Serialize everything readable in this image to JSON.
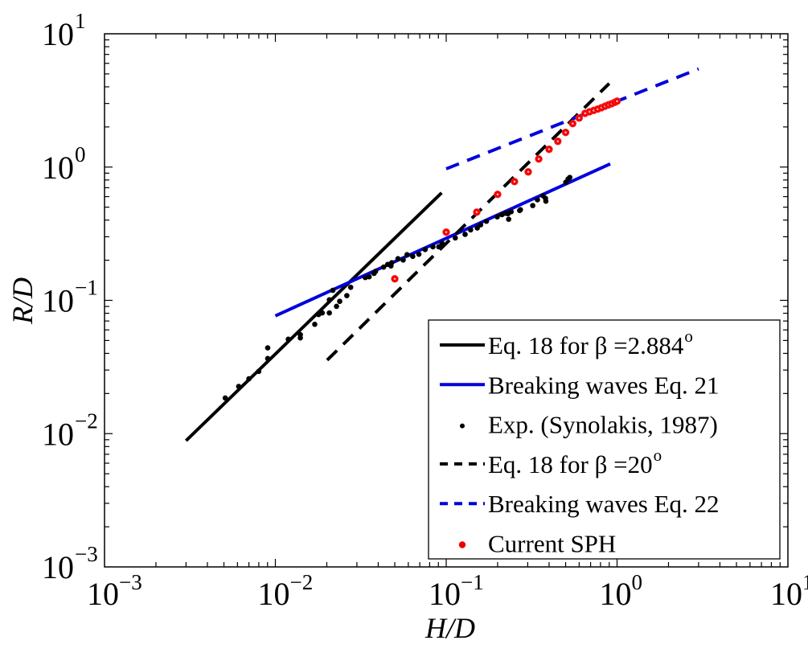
{
  "chart_data": {
    "type": "scatter",
    "title": "",
    "xlabel": "H/D",
    "ylabel": "R/D",
    "xscale": "log",
    "yscale": "log",
    "xlim": [
      0.001,
      10
    ],
    "ylim": [
      0.001,
      10
    ],
    "grid": false,
    "legend_position": "bottom-right",
    "x_ticks": [
      {
        "base": "10",
        "exp": "−3",
        "value": 0.001
      },
      {
        "base": "10",
        "exp": "−2",
        "value": 0.01
      },
      {
        "base": "10",
        "exp": "−1",
        "value": 0.1
      },
      {
        "base": "10",
        "exp": "0",
        "value": 1
      },
      {
        "base": "10",
        "exp": "1",
        "value": 10
      }
    ],
    "y_ticks": [
      {
        "base": "10",
        "exp": "−3",
        "value": 0.001
      },
      {
        "base": "10",
        "exp": "−2",
        "value": 0.01
      },
      {
        "base": "10",
        "exp": "−1",
        "value": 0.1
      },
      {
        "base": "10",
        "exp": "0",
        "value": 1
      },
      {
        "base": "10",
        "exp": "1",
        "value": 10
      }
    ],
    "series": [
      {
        "name": "Eq. 18 for β =2.884°",
        "legend_main": "Eq. 18 for  β =2.884",
        "legend_sup": "o",
        "kind": "line",
        "style": "solid",
        "color": "#000000",
        "formula": "R/D = 12.61 (H/D)^1.25",
        "x": [
          0.003,
          0.094
        ],
        "y": [
          0.00885,
          0.641
        ]
      },
      {
        "name": "Breaking waves Eq. 21",
        "legend_main": "Breaking waves Eq. 21",
        "legend_sup": "",
        "kind": "line",
        "style": "solid",
        "color": "#0000dd",
        "formula": "R/D = 1.109 (H/D)^0.582",
        "x": [
          0.01,
          0.912
        ],
        "y": [
          0.0765,
          1.057
        ]
      },
      {
        "name": "Exp. (Synolakis, 1987)",
        "legend_main": "Exp. (Synolakis, 1987)",
        "legend_sup": "",
        "kind": "scatter",
        "marker": "dot",
        "color": "#000000",
        "x": [
          0.00509,
          0.0061,
          0.007,
          0.00799,
          0.00902,
          0.00902,
          0.0119,
          0.014,
          0.014,
          0.017,
          0.0179,
          0.0188,
          0.0207,
          0.0207,
          0.0228,
          0.0238,
          0.0262,
          0.0217,
          0.0276,
          0.0336,
          0.0354,
          0.0378,
          0.0386,
          0.043,
          0.0475,
          0.048,
          0.0455,
          0.0522,
          0.056,
          0.059,
          0.0637,
          0.0692,
          0.0753,
          0.0836,
          0.0905,
          0.0944,
          0.113,
          0.129,
          0.139,
          0.152,
          0.159,
          0.172,
          0.199,
          0.212,
          0.222,
          0.232,
          0.23,
          0.24,
          0.269,
          0.272,
          0.321,
          0.342,
          0.369,
          0.381,
          0.383,
          0.501,
          0.517,
          0.529
        ],
        "y": [
          0.0185,
          0.0226,
          0.0258,
          0.0293,
          0.0366,
          0.044,
          0.0511,
          0.0523,
          0.0553,
          0.0661,
          0.0783,
          0.0805,
          0.0805,
          0.1009,
          0.0902,
          0.0983,
          0.1085,
          0.1188,
          0.1253,
          0.1483,
          0.1503,
          0.1593,
          0.1651,
          0.1775,
          0.1812,
          0.1917,
          0.1862,
          0.2054,
          0.2009,
          0.2202,
          0.2137,
          0.2218,
          0.2405,
          0.252,
          0.252,
          0.2685,
          0.294,
          0.3126,
          0.3378,
          0.3492,
          0.3689,
          0.392,
          0.4229,
          0.4399,
          0.45,
          0.406,
          0.4468,
          0.4624,
          0.4721,
          0.4787,
          0.5142,
          0.5682,
          0.6092,
          0.5827,
          0.5543,
          0.7689,
          0.8133,
          0.836
        ]
      },
      {
        "name": "Eq. 18 for β =20°",
        "legend_main": "Eq. 18 for  β =20",
        "legend_sup": "o",
        "kind": "line",
        "style": "dashed",
        "color": "#000000",
        "formula": "R/D = 4.69 (H/D)^1.25",
        "x": [
          0.0201,
          0.9
        ],
        "y": [
          0.0356,
          4.24
        ]
      },
      {
        "name": "Breaking waves Eq. 22",
        "legend_main": "Breaking waves Eq. 22",
        "legend_sup": "",
        "kind": "line",
        "style": "dashed",
        "color": "#0000dd",
        "formula": "R/D = 3.1 (H/D)^0.5",
        "x": [
          0.1,
          3.0
        ],
        "y": [
          0.97,
          5.45
        ]
      },
      {
        "name": "Current SPH",
        "legend_main": "Current SPH",
        "legend_sup": "",
        "kind": "scatter",
        "marker": "circle",
        "color": "#ee0000",
        "x": [
          0.05,
          0.1,
          0.151,
          0.2,
          0.251,
          0.302,
          0.348,
          0.4,
          0.45,
          0.5,
          0.55,
          0.6,
          0.65,
          0.69,
          0.73,
          0.77,
          0.81,
          0.85,
          0.89,
          0.93,
          0.97,
          1.0
        ],
        "y": [
          0.145,
          0.325,
          0.459,
          0.624,
          0.778,
          0.92,
          1.15,
          1.36,
          1.56,
          1.82,
          2.12,
          2.33,
          2.53,
          2.6,
          2.66,
          2.72,
          2.79,
          2.86,
          2.93,
          2.99,
          3.06,
          3.12
        ]
      }
    ]
  }
}
